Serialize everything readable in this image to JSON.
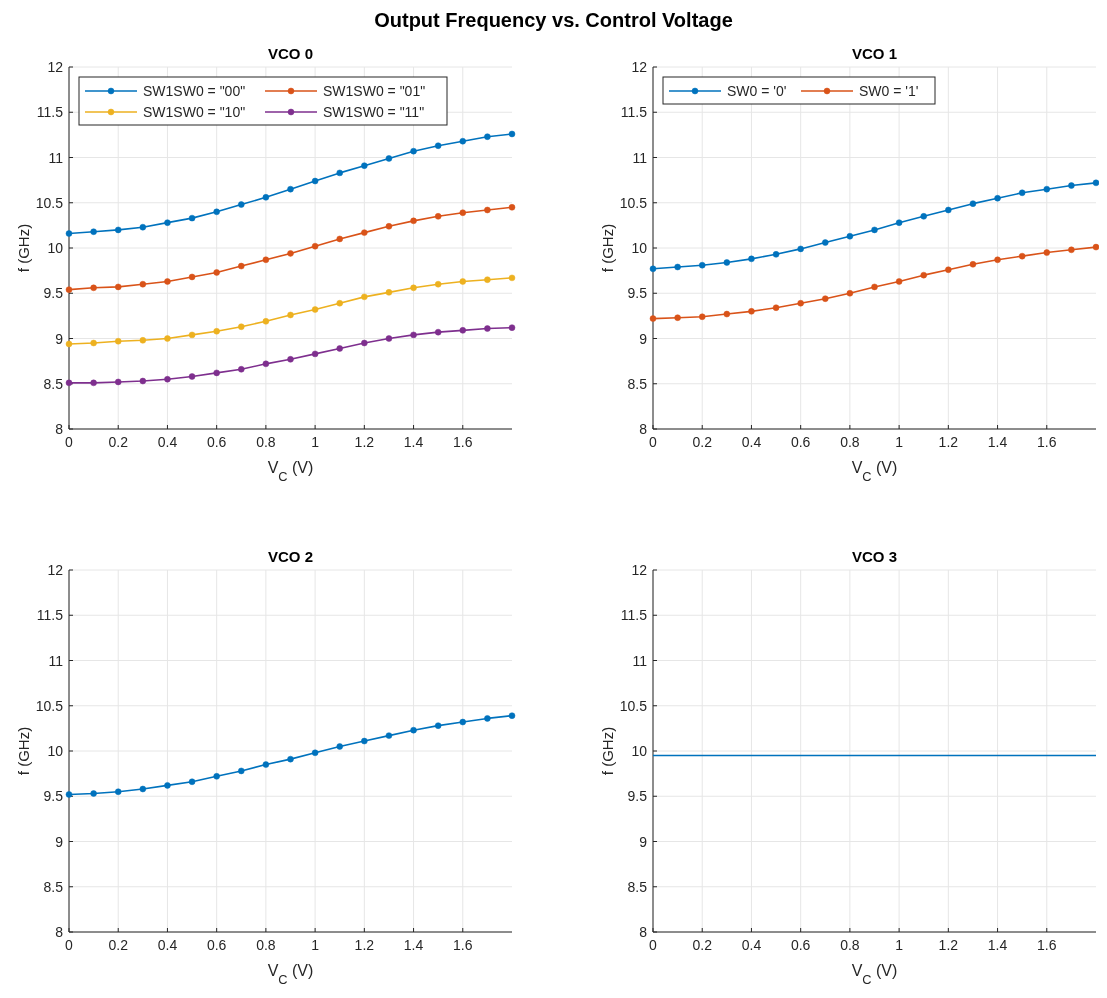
{
  "chart_data": [
    {
      "type": "line",
      "title": "VCO 0",
      "xlabel": "V$_{C}$ (V)",
      "ylabel": "f (GHz)",
      "annotations": [
        "Output Frequency vs. Control Voltage"
      ],
      "x": [
        0,
        0.1,
        0.2,
        0.3,
        0.4,
        0.5,
        0.6,
        0.7,
        0.8,
        0.9,
        1,
        1.1,
        1.2,
        1.3,
        1.4,
        1.5,
        1.6,
        1.7,
        1.8
      ],
      "xlim": [
        0,
        1.8
      ],
      "xticks": [
        0,
        0.2,
        0.4,
        0.6,
        0.8,
        1,
        1.2,
        1.4,
        1.6
      ],
      "ylim": [
        8,
        12
      ],
      "yticks": [
        8,
        8.5,
        9,
        9.5,
        10,
        10.5,
        11,
        11.5,
        12
      ],
      "grid": true,
      "legend": "top left",
      "marker": "circle",
      "line_style": "solid",
      "series": [
        {
          "name": "SW1SW0 = \"00\"",
          "color": "#0072bd",
          "values": [
            10.16,
            10.18,
            10.2,
            10.23,
            10.28,
            10.33,
            10.4,
            10.48,
            10.56,
            10.65,
            10.74,
            10.83,
            10.91,
            10.99,
            11.07,
            11.13,
            11.18,
            11.23,
            11.26
          ]
        },
        {
          "name": "SW1SW0 = \"01\"",
          "color": "#d95319",
          "values": [
            9.54,
            9.56,
            9.57,
            9.6,
            9.63,
            9.68,
            9.73,
            9.8,
            9.87,
            9.94,
            10.02,
            10.1,
            10.17,
            10.24,
            10.3,
            10.35,
            10.39,
            10.42,
            10.45
          ]
        },
        {
          "name": "SW1SW0 = \"10\"",
          "color": "#edb120",
          "values": [
            8.94,
            8.95,
            8.97,
            8.98,
            9.0,
            9.04,
            9.08,
            9.13,
            9.19,
            9.26,
            9.32,
            9.39,
            9.46,
            9.51,
            9.56,
            9.6,
            9.63,
            9.65,
            9.67
          ]
        },
        {
          "name": "SW1SW0 = \"11\"",
          "color": "#7e2f8e",
          "values": [
            8.51,
            8.51,
            8.52,
            8.53,
            8.55,
            8.58,
            8.62,
            8.66,
            8.72,
            8.77,
            8.83,
            8.89,
            8.95,
            9.0,
            9.04,
            9.07,
            9.09,
            9.11,
            9.12
          ]
        }
      ]
    },
    {
      "type": "line",
      "title": "VCO 1",
      "xlabel": "V$_{C}$ (V)",
      "ylabel": "f (GHz)",
      "x": [
        0,
        0.1,
        0.2,
        0.3,
        0.4,
        0.5,
        0.6,
        0.7,
        0.8,
        0.9,
        1,
        1.1,
        1.2,
        1.3,
        1.4,
        1.5,
        1.6,
        1.7,
        1.8
      ],
      "xlim": [
        0,
        1.8
      ],
      "xticks": [
        0,
        0.2,
        0.4,
        0.6,
        0.8,
        1,
        1.2,
        1.4,
        1.6
      ],
      "ylim": [
        8,
        12
      ],
      "yticks": [
        8,
        8.5,
        9,
        9.5,
        10,
        10.5,
        11,
        11.5,
        12
      ],
      "grid": true,
      "legend": "top left",
      "marker": "circle",
      "line_style": "solid",
      "series": [
        {
          "name": "SW0 = '0'",
          "color": "#0072bd",
          "values": [
            9.77,
            9.79,
            9.81,
            9.84,
            9.88,
            9.93,
            9.99,
            10.06,
            10.13,
            10.2,
            10.28,
            10.35,
            10.42,
            10.49,
            10.55,
            10.61,
            10.65,
            10.69,
            10.72
          ]
        },
        {
          "name": "SW0 = '1'",
          "color": "#d95319",
          "values": [
            9.22,
            9.23,
            9.24,
            9.27,
            9.3,
            9.34,
            9.39,
            9.44,
            9.5,
            9.57,
            9.63,
            9.7,
            9.76,
            9.82,
            9.87,
            9.91,
            9.95,
            9.98,
            10.01
          ]
        }
      ]
    },
    {
      "type": "line",
      "title": "VCO 2",
      "xlabel": "V$_{C}$ (V)",
      "ylabel": "f (GHz)",
      "x": [
        0,
        0.1,
        0.2,
        0.3,
        0.4,
        0.5,
        0.6,
        0.7,
        0.8,
        0.9,
        1,
        1.1,
        1.2,
        1.3,
        1.4,
        1.5,
        1.6,
        1.7,
        1.8
      ],
      "xlim": [
        0,
        1.8
      ],
      "xticks": [
        0,
        0.2,
        0.4,
        0.6,
        0.8,
        1,
        1.2,
        1.4,
        1.6
      ],
      "ylim": [
        8,
        12
      ],
      "yticks": [
        8,
        8.5,
        9,
        9.5,
        10,
        10.5,
        11,
        11.5,
        12
      ],
      "grid": true,
      "marker": "circle",
      "line_style": "solid",
      "series": [
        {
          "color": "#0072bd",
          "values": [
            9.52,
            9.53,
            9.55,
            9.58,
            9.62,
            9.66,
            9.72,
            9.78,
            9.85,
            9.91,
            9.98,
            10.05,
            10.11,
            10.17,
            10.23,
            10.28,
            10.32,
            10.36,
            10.39
          ]
        }
      ]
    },
    {
      "type": "line",
      "title": "VCO 3",
      "xlabel": "V$_{C}$ (V)",
      "ylabel": "f (GHz)",
      "x": [
        0,
        1.8
      ],
      "xlim": [
        0,
        1.8
      ],
      "xticks": [
        0,
        0.2,
        0.4,
        0.6,
        0.8,
        1,
        1.2,
        1.4,
        1.6
      ],
      "ylim": [
        8,
        12
      ],
      "yticks": [
        8,
        8.5,
        9,
        9.5,
        10,
        10.5,
        11,
        11.5,
        12
      ],
      "grid": true,
      "marker": "none",
      "line_style": "solid",
      "series": [
        {
          "color": "#0072bd",
          "values": [
            9.95,
            9.95
          ]
        }
      ]
    }
  ]
}
